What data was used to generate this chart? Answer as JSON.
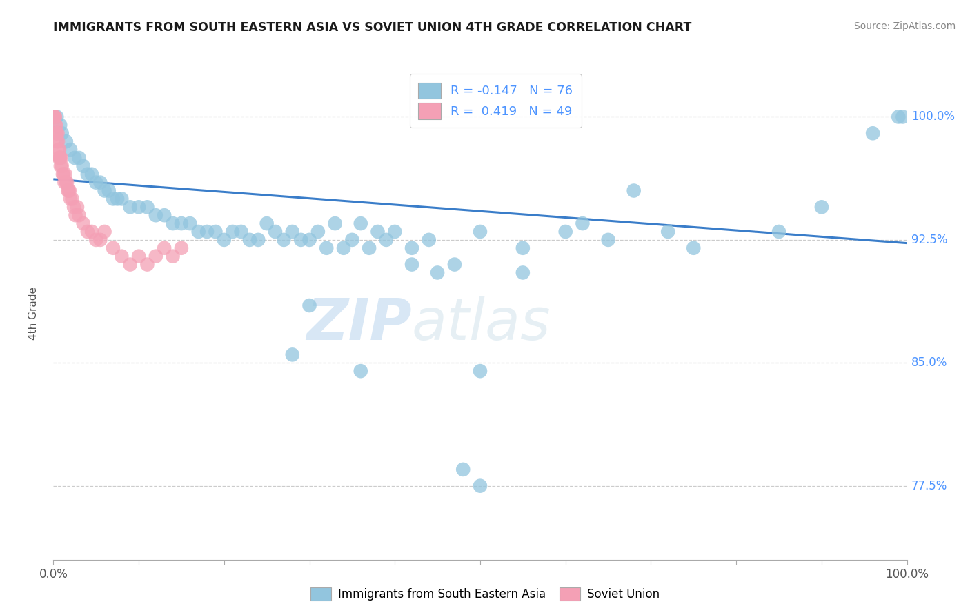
{
  "title": "IMMIGRANTS FROM SOUTH EASTERN ASIA VS SOVIET UNION 4TH GRADE CORRELATION CHART",
  "source_text": "Source: ZipAtlas.com",
  "ylabel": "4th Grade",
  "xlim": [
    0.0,
    100.0
  ],
  "ylim": [
    73.0,
    103.0
  ],
  "yticks": [
    77.5,
    85.0,
    92.5,
    100.0
  ],
  "ytick_labels": [
    "77.5%",
    "85.0%",
    "92.5%",
    "100.0%"
  ],
  "xticks": [
    0,
    10,
    20,
    30,
    40,
    50,
    60,
    70,
    80,
    90,
    100
  ],
  "xtick_labels_sparse": {
    "0": "0.0%",
    "100": "100.0%"
  },
  "legend_label1": "Immigrants from South Eastern Asia",
  "legend_label2": "Soviet Union",
  "blue_color": "#92c5de",
  "pink_color": "#f4a0b5",
  "trendline_color": "#3a7dc9",
  "blue_scatter_x": [
    0.4,
    0.8,
    1.0,
    1.5,
    2.0,
    2.5,
    3.0,
    3.5,
    4.0,
    4.5,
    5.0,
    5.5,
    6.0,
    6.5,
    7.0,
    7.5,
    8.0,
    9.0,
    10.0,
    11.0,
    12.0,
    13.0,
    14.0,
    15.0,
    16.0,
    17.0,
    18.0,
    19.0,
    20.0,
    21.0,
    22.0,
    23.0,
    24.0,
    25.0,
    26.0,
    27.0,
    28.0,
    29.0,
    30.0,
    31.0,
    32.0,
    33.0,
    34.0,
    35.0,
    36.0,
    37.0,
    38.0,
    39.0,
    40.0,
    42.0,
    44.0,
    47.0,
    50.0,
    55.0,
    62.0,
    30.0,
    50.0,
    36.0,
    28.0,
    68.0,
    99.5,
    99.0,
    96.0,
    90.0,
    85.0,
    75.0,
    72.0,
    65.0,
    60.0,
    55.0,
    50.0,
    48.0,
    45.0,
    42.0
  ],
  "blue_scatter_y": [
    100.0,
    99.5,
    99.0,
    98.5,
    98.0,
    97.5,
    97.5,
    97.0,
    96.5,
    96.5,
    96.0,
    96.0,
    95.5,
    95.5,
    95.0,
    95.0,
    95.0,
    94.5,
    94.5,
    94.5,
    94.0,
    94.0,
    93.5,
    93.5,
    93.5,
    93.0,
    93.0,
    93.0,
    92.5,
    93.0,
    93.0,
    92.5,
    92.5,
    93.5,
    93.0,
    92.5,
    93.0,
    92.5,
    92.5,
    93.0,
    92.0,
    93.5,
    92.0,
    92.5,
    93.5,
    92.0,
    93.0,
    92.5,
    93.0,
    91.0,
    92.5,
    91.0,
    93.0,
    90.5,
    93.5,
    88.5,
    84.5,
    84.5,
    85.5,
    95.5,
    100.0,
    100.0,
    99.0,
    94.5,
    93.0,
    92.0,
    93.0,
    92.5,
    93.0,
    92.0,
    77.5,
    78.5,
    90.5,
    92.0
  ],
  "pink_scatter_x": [
    0.05,
    0.1,
    0.15,
    0.2,
    0.25,
    0.3,
    0.35,
    0.4,
    0.45,
    0.5,
    0.55,
    0.6,
    0.65,
    0.7,
    0.75,
    0.8,
    0.85,
    0.9,
    1.0,
    1.1,
    1.2,
    1.3,
    1.4,
    1.5,
    1.6,
    1.7,
    1.8,
    1.9,
    2.0,
    2.2,
    2.4,
    2.6,
    2.8,
    3.0,
    3.5,
    4.0,
    4.5,
    5.0,
    5.5,
    6.0,
    7.0,
    8.0,
    9.0,
    10.0,
    11.0,
    12.0,
    13.0,
    14.0,
    15.0
  ],
  "pink_scatter_y": [
    100.0,
    100.0,
    100.0,
    100.0,
    99.5,
    99.5,
    99.0,
    99.0,
    98.5,
    99.0,
    98.5,
    98.0,
    97.5,
    98.0,
    97.5,
    97.5,
    97.0,
    97.5,
    97.0,
    96.5,
    96.5,
    96.0,
    96.5,
    96.0,
    96.0,
    95.5,
    95.5,
    95.5,
    95.0,
    95.0,
    94.5,
    94.0,
    94.5,
    94.0,
    93.5,
    93.0,
    93.0,
    92.5,
    92.5,
    93.0,
    92.0,
    91.5,
    91.0,
    91.5,
    91.0,
    91.5,
    92.0,
    91.5,
    92.0
  ],
  "trendline_x": [
    0.0,
    100.0
  ],
  "trendline_y": [
    96.2,
    92.3
  ],
  "watermark_zip": "ZIP",
  "watermark_atlas": "atlas",
  "background_color": "#ffffff",
  "grid_color": "#cccccc",
  "ytick_color": "#4d94ff",
  "title_color": "#1a1a1a",
  "label_color": "#555555"
}
